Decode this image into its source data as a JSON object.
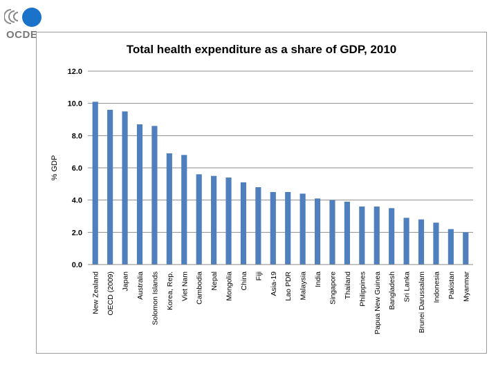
{
  "logo": {
    "text": "OCDE",
    "colors": {
      "blue": "#1a73c8",
      "gray": "#888888"
    }
  },
  "chart_data": {
    "type": "bar",
    "title": "Total health expenditure as a share of GDP, 2010",
    "xlabel": "",
    "ylabel": "% GDP",
    "ylim": [
      0,
      12
    ],
    "yticks": [
      "0.0",
      "2.0",
      "4.0",
      "6.0",
      "8.0",
      "10.0",
      "12.0"
    ],
    "grid": true,
    "bar_color": "#4f7fbd",
    "categories": [
      "New Zealand",
      "OECD (2009)",
      "Japan",
      "Australia",
      "Solomon Islands",
      "Korea, Rep.",
      "Viet Nam",
      "Cambodia",
      "Nepal",
      "Mongolia",
      "China",
      "Fiji",
      "Asia-19",
      "Lao PDR",
      "Malaysia",
      "India",
      "Singapore",
      "Thailand",
      "Philippines",
      "Papua New Guinea",
      "Bangladesh",
      "Sri Lanka",
      "Brunei Darussalam",
      "Indonesia",
      "Pakistan",
      "Myanmar"
    ],
    "values": [
      10.1,
      9.6,
      9.5,
      8.7,
      8.6,
      6.9,
      6.8,
      5.6,
      5.5,
      5.4,
      5.1,
      4.8,
      4.5,
      4.5,
      4.4,
      4.1,
      4.0,
      3.9,
      3.6,
      3.6,
      3.5,
      2.9,
      2.8,
      2.6,
      2.2,
      2.0
    ]
  }
}
